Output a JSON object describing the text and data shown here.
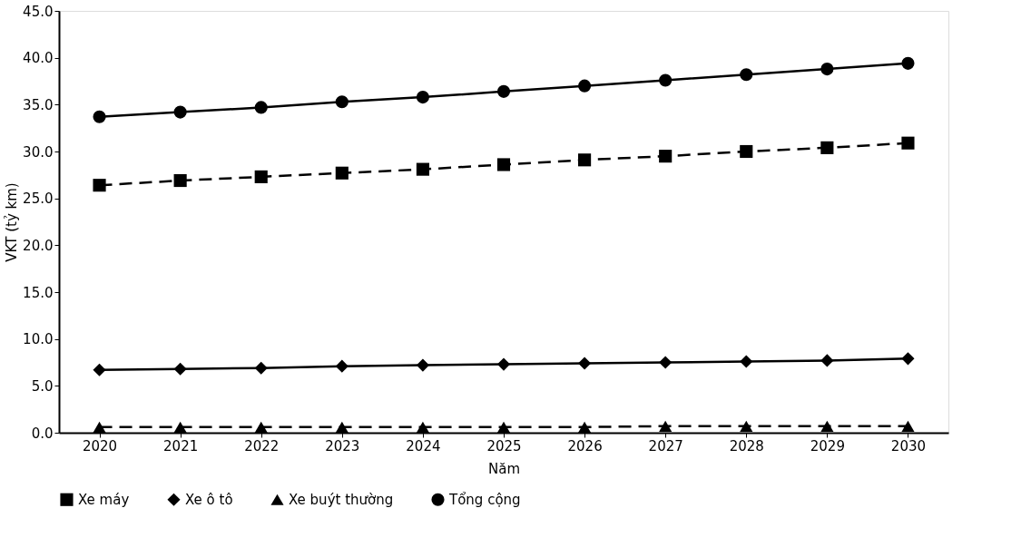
{
  "chart_data": {
    "type": "line",
    "xlabel": "Năm",
    "ylabel": "VKT (tỷ km)",
    "categories": [
      "2020",
      "2021",
      "2022",
      "2023",
      "2024",
      "2025",
      "2026",
      "2027",
      "2028",
      "2029",
      "2030"
    ],
    "series": [
      {
        "name": "Xe máy",
        "color": "#000000",
        "marker": "square",
        "line_style": "dashed",
        "values": [
          26.4,
          26.9,
          27.3,
          27.7,
          28.1,
          28.6,
          29.1,
          29.5,
          30.0,
          30.4,
          30.9
        ]
      },
      {
        "name": "Xe ô tô",
        "color": "#000000",
        "marker": "diamond",
        "line_style": "solid",
        "values": [
          6.7,
          6.8,
          6.9,
          7.1,
          7.2,
          7.3,
          7.4,
          7.5,
          7.6,
          7.7,
          7.9
        ]
      },
      {
        "name": "Xe buýt thường",
        "color": "#000000",
        "marker": "triangle",
        "line_style": "dashed",
        "values": [
          0.6,
          0.6,
          0.6,
          0.6,
          0.6,
          0.6,
          0.6,
          0.7,
          0.7,
          0.7,
          0.7
        ]
      },
      {
        "name": "Tổng cộng",
        "color": "#000000",
        "marker": "circle",
        "line_style": "solid",
        "values": [
          33.7,
          34.2,
          34.7,
          35.3,
          35.8,
          36.4,
          37.0,
          37.6,
          38.2,
          38.8,
          39.4
        ]
      }
    ],
    "ylim": [
      0,
      45
    ],
    "yticks": [
      {
        "value": 0,
        "label": "0.0"
      },
      {
        "value": 5,
        "label": "5.0"
      },
      {
        "value": 10,
        "label": "10.0"
      },
      {
        "value": 15,
        "label": "15.0"
      },
      {
        "value": 20,
        "label": "20.0"
      },
      {
        "value": 25,
        "label": "25.0"
      },
      {
        "value": 30,
        "label": "30.0"
      },
      {
        "value": 35,
        "label": "35.0"
      },
      {
        "value": 40,
        "label": "40.0"
      },
      {
        "value": 45,
        "label": "45.0"
      }
    ],
    "grid": false,
    "legend": "bottom"
  }
}
